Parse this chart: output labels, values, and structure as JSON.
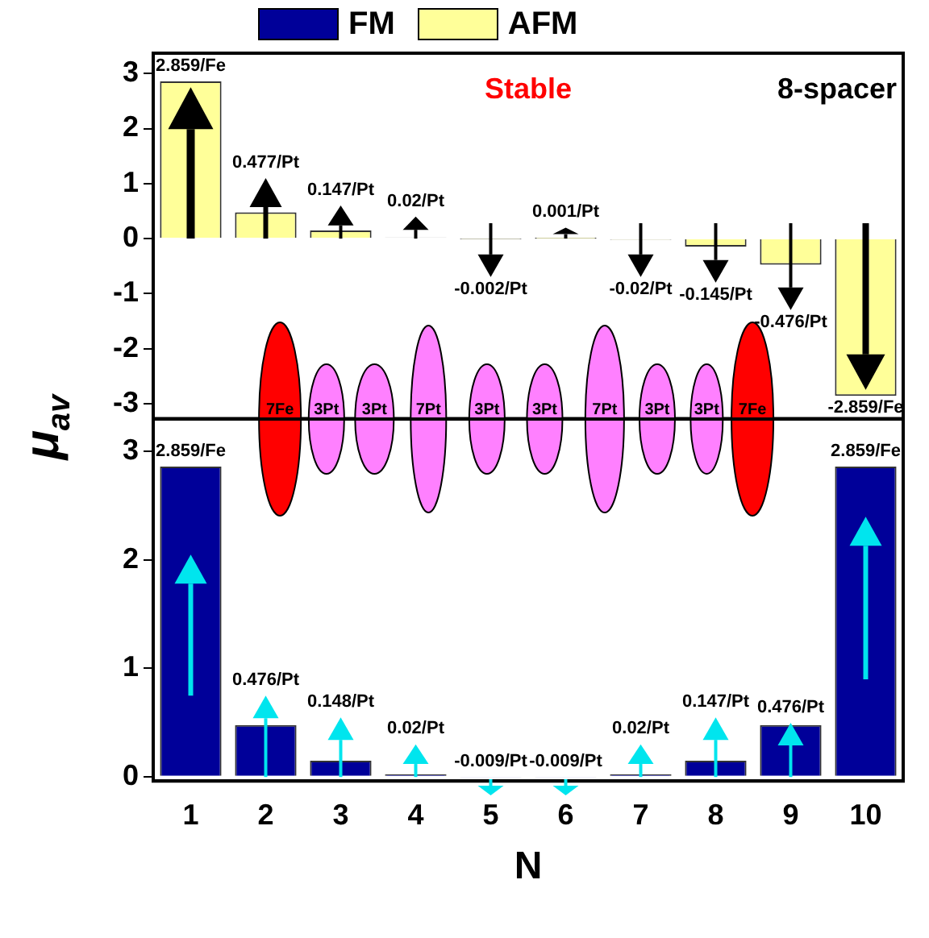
{
  "chart_data": [
    {
      "type": "bar",
      "categories": [
        "1",
        "2",
        "3",
        "4",
        "5",
        "6",
        "7",
        "8",
        "9",
        "10"
      ],
      "ylabel": "μ$_{av}$",
      "series": [
        {
          "name": "AFM",
          "color": "#ffff99",
          "values": [
            2.859,
            0.477,
            0.147,
            0.02,
            -0.002,
            0.001,
            -0.02,
            -0.145,
            -0.476,
            -2.859
          ],
          "value_labels": [
            "2.859/Fe",
            "0.477/Pt",
            "0.147/Pt",
            "0.02/Pt",
            "-0.002/Pt",
            "0.001/Pt",
            "-0.02/Pt",
            "-0.145/Pt",
            "-0.476/Pt",
            "-2.859/Fe"
          ]
        }
      ],
      "ylim": [
        -3.28,
        3.37
      ],
      "yticks": [
        -3,
        -2,
        -1,
        0,
        1,
        2,
        3
      ],
      "tick_labels": "y",
      "legend": "top",
      "grid": false,
      "annotations": [
        "Stable",
        "8-spacer",
        "7Fe",
        "3Pt",
        "3Pt",
        "7Pt",
        "3Pt",
        "3Pt",
        "7Pt",
        "3Pt",
        "3Pt",
        "7Fe"
      ]
    },
    {
      "type": "bar",
      "categories": [
        "1",
        "2",
        "3",
        "4",
        "5",
        "6",
        "7",
        "8",
        "9",
        "10"
      ],
      "xlabel": "N",
      "series": [
        {
          "name": "FM",
          "color": "#000099",
          "values": [
            2.859,
            0.476,
            0.148,
            0.02,
            -0.009,
            -0.009,
            0.02,
            0.147,
            0.476,
            2.859
          ],
          "value_labels": [
            "2.859/Fe",
            "0.476/Pt",
            "0.148/Pt",
            "0.02/Pt",
            "-0.009/Pt",
            "-0.009/Pt",
            "0.02/Pt",
            "0.147/Pt",
            "0.476/Pt",
            "2.859/Fe"
          ]
        }
      ],
      "ylim": [
        -0.04,
        3.3
      ],
      "yticks": [
        0,
        1,
        2,
        3
      ],
      "grid": false,
      "legend": "top"
    }
  ]
}
